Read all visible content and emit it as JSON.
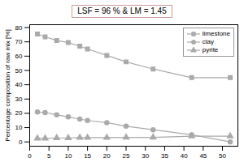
{
  "chart_data": {
    "type": "line",
    "title": "LSF = 96 % & LM = 1.45",
    "ylabel": "Percentage composition of raw mix [%]",
    "x": [
      2,
      4,
      7,
      10,
      13,
      15,
      20,
      25,
      32,
      42,
      52
    ],
    "series": [
      {
        "name": "limestone",
        "color": "#aaaaaa",
        "marker": "square",
        "values": [
          75.5,
          73.5,
          71.0,
          69.5,
          67.0,
          65.0,
          60.5,
          56.0,
          51.0,
          45.0,
          45.0
        ]
      },
      {
        "name": "clay",
        "color": "#aaaaaa",
        "marker": "circle",
        "values": [
          21.0,
          20.5,
          19.0,
          17.5,
          16.0,
          15.0,
          13.5,
          11.0,
          8.5,
          5.0,
          0.0
        ]
      },
      {
        "name": "pyrite",
        "color": "#aaaaaa",
        "marker": "triangle",
        "values": [
          2.5,
          2.5,
          2.8,
          2.8,
          3.0,
          3.0,
          3.0,
          3.2,
          3.2,
          4.0,
          4.0
        ]
      }
    ],
    "xlim": [
      0,
      54
    ],
    "ylim": [
      -3,
      82
    ],
    "xticks": [
      0,
      5,
      10,
      15,
      20,
      25,
      30,
      35,
      40,
      45,
      50
    ],
    "yticks": [
      0,
      10,
      20,
      30,
      40,
      50,
      60,
      70,
      80
    ],
    "grid": false,
    "legend": "upper right"
  }
}
